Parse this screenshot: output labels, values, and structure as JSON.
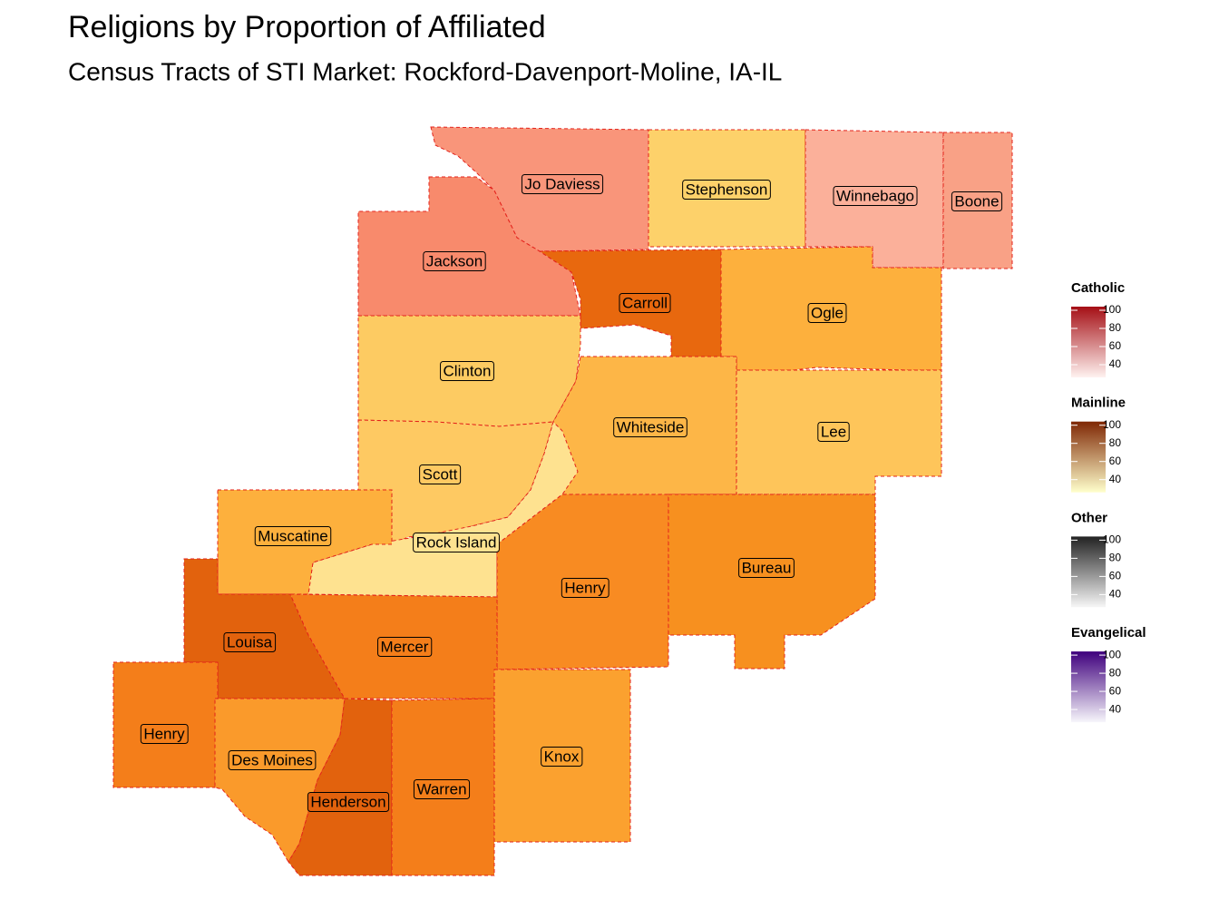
{
  "title": "Religions by Proportion of Affiliated",
  "subtitle": "Census Tracts of STI Market: Rockford-Davenport-Moline, IA-IL",
  "regions": [
    {
      "label": "Jo Daviess",
      "color": "#f9957a"
    },
    {
      "label": "Stephenson",
      "color": "#fdd16a"
    },
    {
      "label": "Winnebago",
      "color": "#fbb09a"
    },
    {
      "label": "Boone",
      "color": "#f9a186"
    },
    {
      "label": "Jackson",
      "color": "#f88a6c"
    },
    {
      "label": "Carroll",
      "color": "#e8680e"
    },
    {
      "label": "Ogle",
      "color": "#fdb03d"
    },
    {
      "label": "Clinton",
      "color": "#fdcb62"
    },
    {
      "label": "Whiteside",
      "color": "#fdb647"
    },
    {
      "label": "Lee",
      "color": "#fec55a"
    },
    {
      "label": "Scott",
      "color": "#fec962"
    },
    {
      "label": "Rock Island",
      "color": "#fee290"
    },
    {
      "label": "Henry",
      "color": "#f88b22"
    },
    {
      "label": "Bureau",
      "color": "#f7901f"
    },
    {
      "label": "Muscatine",
      "color": "#fdb03d"
    },
    {
      "label": "Louisa",
      "color": "#e2620d"
    },
    {
      "label": "Mercer",
      "color": "#f47e1a"
    },
    {
      "label": "Henry",
      "color": "#f47e1a"
    },
    {
      "label": "Des Moines",
      "color": "#fa9a2b"
    },
    {
      "label": "Henderson",
      "color": "#e2620d"
    },
    {
      "label": "Warren",
      "color": "#f47e1a"
    },
    {
      "label": "Knox",
      "color": "#fba12f"
    }
  ],
  "legends": [
    {
      "title": "Catholic",
      "colors": [
        "#fff2f0",
        "#a50f15"
      ],
      "lim": [
        26,
        104
      ],
      "ticks": [
        40,
        60,
        80,
        100
      ]
    },
    {
      "title": "Mainline",
      "colors": [
        "#ffffcc",
        "#7f2704"
      ],
      "lim": [
        26,
        104
      ],
      "ticks": [
        40,
        60,
        80,
        100
      ]
    },
    {
      "title": "Other",
      "colors": [
        "#f7f7f7",
        "#222222"
      ],
      "lim": [
        26,
        104
      ],
      "ticks": [
        40,
        60,
        80,
        100
      ]
    },
    {
      "title": "Evangelical",
      "colors": [
        "#f7f6fb",
        "#3f007d"
      ],
      "lim": [
        26,
        104
      ],
      "ticks": [
        40,
        60,
        80,
        100
      ]
    }
  ]
}
